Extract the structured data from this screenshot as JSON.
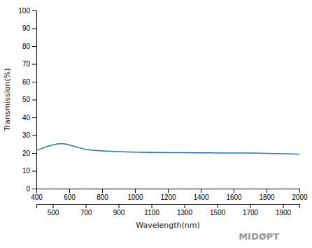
{
  "chart_data": {
    "type": "line",
    "xlabel": "Wavelength(nm)",
    "ylabel": "Transmission(%)",
    "annotations": [
      "MIDØPT"
    ],
    "x": [
      400,
      420,
      440,
      460,
      480,
      500,
      520,
      540,
      560,
      580,
      600,
      620,
      640,
      660,
      680,
      700,
      750,
      800,
      850,
      900,
      950,
      1000,
      1050,
      1100,
      1150,
      1200,
      1250,
      1300,
      1350,
      1400,
      1450,
      1500,
      1550,
      1600,
      1650,
      1700,
      1750,
      1800,
      1850,
      1900,
      1950,
      2000
    ],
    "values": [
      21.5,
      22.0,
      22.8,
      23.5,
      24.0,
      24.5,
      25.0,
      25.2,
      25.2,
      25.0,
      24.5,
      24.0,
      23.5,
      23.0,
      22.5,
      22.0,
      21.5,
      21.2,
      21.0,
      20.8,
      20.6,
      20.5,
      20.4,
      20.3,
      20.3,
      20.2,
      20.2,
      20.2,
      20.1,
      20.1,
      20.1,
      20.0,
      20.0,
      20.0,
      20.0,
      20.0,
      19.9,
      19.8,
      19.7,
      19.6,
      19.5,
      19.3
    ],
    "xlim": [
      400,
      2000
    ],
    "xticks": [
      400,
      600,
      800,
      1000,
      1200,
      1400,
      1600,
      1800,
      2000
    ],
    "x2lim": [
      400,
      2000
    ],
    "x2ticks": [
      500,
      700,
      900,
      1100,
      1300,
      1500,
      1700,
      1900
    ],
    "ylim": [
      0,
      100
    ],
    "yticks": [
      0,
      10,
      20,
      30,
      40,
      50,
      60,
      70,
      80,
      90,
      100
    ],
    "grid": false
  }
}
